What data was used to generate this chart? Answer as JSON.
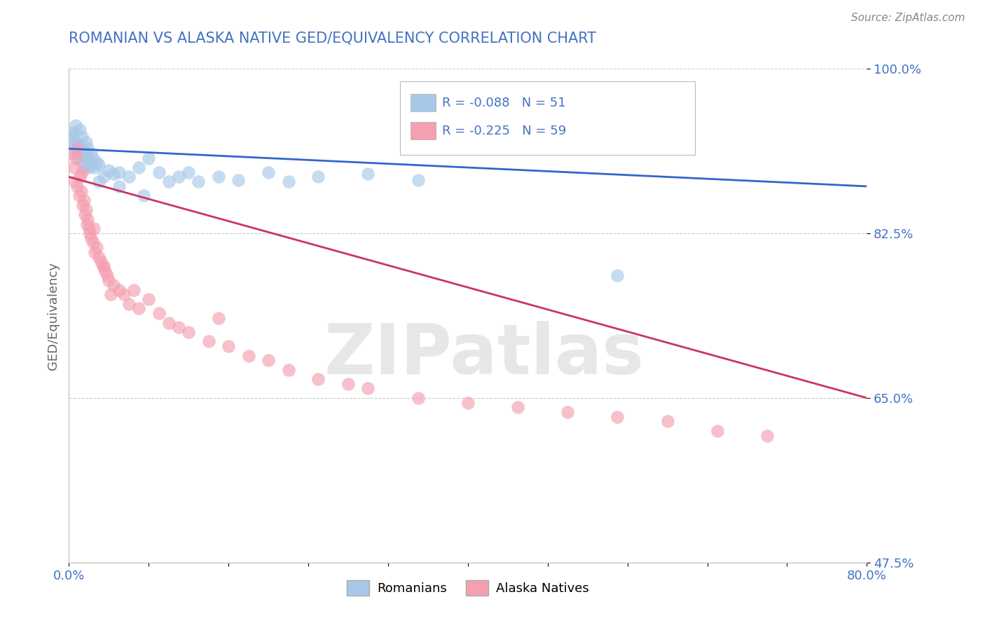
{
  "title": "ROMANIAN VS ALASKA NATIVE GED/EQUIVALENCY CORRELATION CHART",
  "source": "Source: ZipAtlas.com",
  "ylabel": "GED/Equivalency",
  "xlim": [
    0.0,
    80.0
  ],
  "ylim": [
    47.5,
    100.0
  ],
  "xtick_labels": [
    "0.0%",
    "80.0%"
  ],
  "ytick_labels": [
    "47.5%",
    "65.0%",
    "82.5%",
    "100.0%"
  ],
  "yticks": [
    47.5,
    65.0,
    82.5,
    100.0
  ],
  "romanian_color": "#a8c8e8",
  "alaskan_color": "#f4a0b0",
  "romanian_R": -0.088,
  "romanian_N": 51,
  "alaskan_R": -0.225,
  "alaskan_N": 59,
  "trend_blue": "#3366cc",
  "trend_pink": "#cc3366",
  "watermark": "ZIPatlas",
  "background_color": "#ffffff",
  "grid_color": "#cccccc",
  "title_color": "#4472c4",
  "tick_color": "#4472c4",
  "axis_label_color": "#666666",
  "romanian_dots_x": [
    0.3,
    0.5,
    0.6,
    0.7,
    0.8,
    0.9,
    1.0,
    1.1,
    1.2,
    1.3,
    1.4,
    1.5,
    1.6,
    1.7,
    1.8,
    1.9,
    2.0,
    2.1,
    2.2,
    2.4,
    2.6,
    2.8,
    3.0,
    3.5,
    4.0,
    4.5,
    5.0,
    6.0,
    7.0,
    8.0,
    9.0,
    10.0,
    11.0,
    12.0,
    13.0,
    15.0,
    17.0,
    20.0,
    22.0,
    25.0,
    30.0,
    35.0,
    0.4,
    0.6,
    1.0,
    1.5,
    2.0,
    3.0,
    5.0,
    7.5,
    55.0
  ],
  "romanian_dots_y": [
    92.5,
    93.0,
    91.5,
    94.0,
    91.0,
    92.0,
    90.5,
    93.5,
    91.8,
    92.8,
    90.0,
    89.5,
    91.2,
    92.2,
    90.8,
    91.5,
    90.2,
    89.8,
    91.0,
    90.5,
    89.5,
    90.0,
    89.8,
    88.5,
    89.2,
    88.8,
    89.0,
    88.5,
    89.5,
    90.5,
    89.0,
    88.0,
    88.5,
    89.0,
    88.0,
    88.5,
    88.2,
    89.0,
    88.0,
    88.5,
    88.8,
    88.2,
    93.2,
    92.0,
    91.5,
    90.8,
    89.5,
    88.0,
    87.5,
    86.5,
    78.0
  ],
  "alaskan_dots_x": [
    0.3,
    0.5,
    0.6,
    0.7,
    0.8,
    0.9,
    1.0,
    1.1,
    1.2,
    1.3,
    1.4,
    1.5,
    1.6,
    1.7,
    1.8,
    1.9,
    2.0,
    2.1,
    2.2,
    2.4,
    2.6,
    2.8,
    3.0,
    3.2,
    3.4,
    3.6,
    3.8,
    4.0,
    4.5,
    5.0,
    5.5,
    6.0,
    6.5,
    7.0,
    8.0,
    9.0,
    10.0,
    11.0,
    12.0,
    14.0,
    16.0,
    18.0,
    20.0,
    22.0,
    25.0,
    28.0,
    30.0,
    35.0,
    40.0,
    45.0,
    50.0,
    55.0,
    60.0,
    65.0,
    70.0,
    2.5,
    3.5,
    4.2,
    15.0
  ],
  "alaskan_dots_y": [
    91.0,
    89.5,
    88.0,
    90.5,
    87.5,
    91.5,
    86.5,
    88.5,
    87.0,
    89.0,
    85.5,
    86.0,
    84.5,
    85.0,
    83.5,
    84.0,
    83.0,
    82.5,
    82.0,
    81.5,
    80.5,
    81.0,
    80.0,
    79.5,
    79.0,
    78.5,
    78.0,
    77.5,
    77.0,
    76.5,
    76.0,
    75.0,
    76.5,
    74.5,
    75.5,
    74.0,
    73.0,
    72.5,
    72.0,
    71.0,
    70.5,
    69.5,
    69.0,
    68.0,
    67.0,
    66.5,
    66.0,
    65.0,
    64.5,
    64.0,
    63.5,
    63.0,
    62.5,
    61.5,
    61.0,
    83.0,
    79.0,
    76.0,
    73.5
  ],
  "blue_trend_x0": 0.0,
  "blue_trend_y0": 91.5,
  "blue_trend_x1": 80.0,
  "blue_trend_y1": 87.5,
  "pink_trend_x0": 0.0,
  "pink_trend_y0": 88.5,
  "pink_trend_x1": 80.0,
  "pink_trend_y1": 65.0
}
